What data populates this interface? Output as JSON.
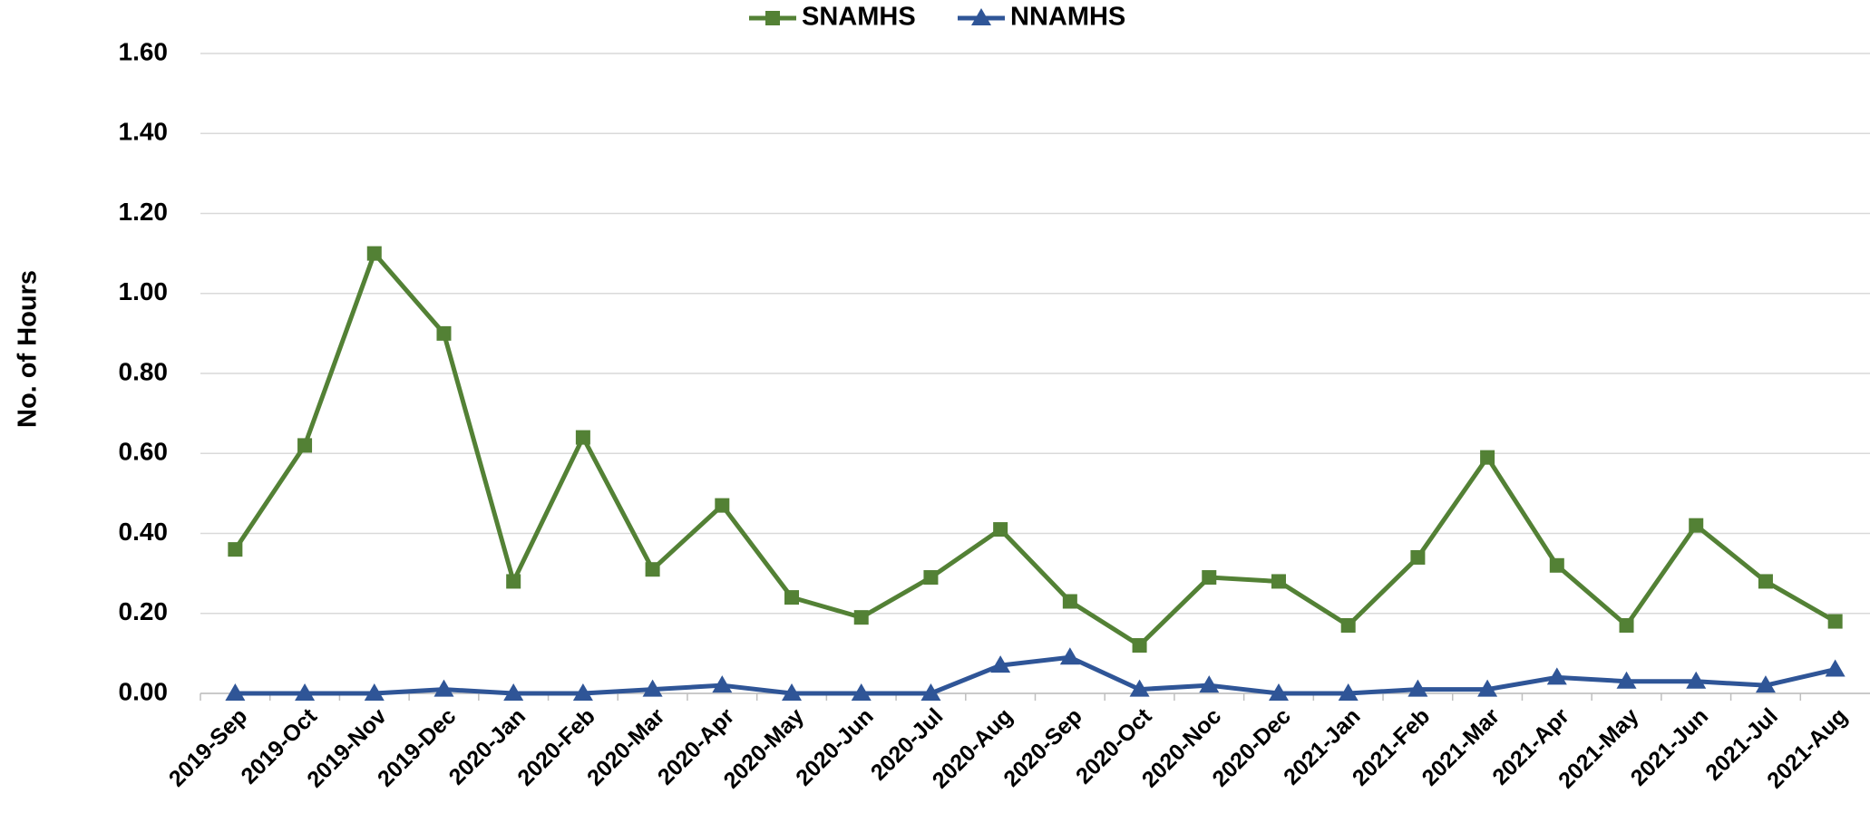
{
  "chart_data": {
    "type": "line",
    "y_label": "No. of Hours",
    "categories": [
      "2019-Sep",
      "2019-Oct",
      "2019-Nov",
      "2019-Dec",
      "2020-Jan",
      "2020-Feb",
      "2020-Mar",
      "2020-Apr",
      "2020-May",
      "2020-Jun",
      "2020-Jul",
      "2020-Aug",
      "2020-Sep",
      "2020-Oct",
      "2020-Noc",
      "2020-Dec",
      "2021-Jan",
      "2021-Feb",
      "2021-Mar",
      "2021-Apr",
      "2021-May",
      "2021-Jun",
      "2021-Jul",
      "2021-Aug"
    ],
    "series": [
      {
        "name": "SNAMHS",
        "color": "#538135",
        "marker": "square",
        "values": [
          0.36,
          0.62,
          1.1,
          0.9,
          0.28,
          0.64,
          0.31,
          0.47,
          0.24,
          0.19,
          0.29,
          0.41,
          0.23,
          0.12,
          0.29,
          0.28,
          0.17,
          0.34,
          0.59,
          0.32,
          0.17,
          0.42,
          0.28,
          0.18
        ]
      },
      {
        "name": "NNAMHS",
        "color": "#2f5597",
        "marker": "triangle",
        "values": [
          0,
          0,
          0,
          0.01,
          0,
          0,
          0.01,
          0.02,
          0,
          0,
          0,
          0.07,
          0.09,
          0.01,
          0.02,
          0,
          0,
          0.01,
          0.01,
          0.04,
          0.03,
          0.03,
          0.02,
          0.06
        ]
      }
    ],
    "ylim": [
      0,
      1.6
    ],
    "yticks": [
      {
        "value": 0,
        "label": "0.00"
      },
      {
        "value": 0.2,
        "label": "0.20"
      },
      {
        "value": 0.4,
        "label": "0.40"
      },
      {
        "value": 0.6,
        "label": "0.60"
      },
      {
        "value": 0.8,
        "label": "0.80"
      },
      {
        "value": 1.0,
        "label": "1.00"
      },
      {
        "value": 1.2,
        "label": "1.20"
      },
      {
        "value": 1.4,
        "label": "1.40"
      },
      {
        "value": 1.6,
        "label": "1.60"
      }
    ],
    "grid": true,
    "legend": "top"
  }
}
